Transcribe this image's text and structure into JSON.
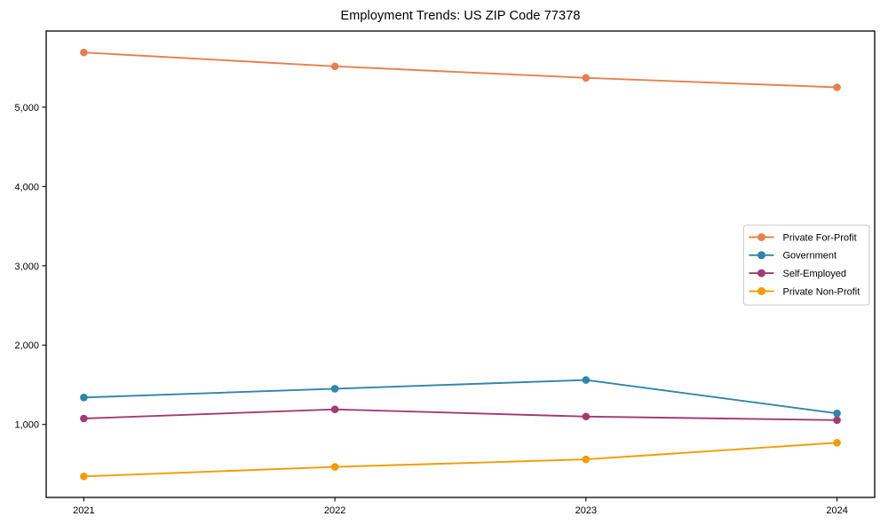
{
  "chart_data": {
    "type": "line",
    "title": "Employment Trends: US ZIP Code 77378",
    "xlabel": "",
    "ylabel": "",
    "x": [
      2021,
      2022,
      2023,
      2024
    ],
    "x_tick_labels": [
      "2021",
      "2022",
      "2023",
      "2024"
    ],
    "y_ticks": [
      1000,
      2000,
      3000,
      4000,
      5000
    ],
    "y_tick_labels": [
      "1,000",
      "2,000",
      "3,000",
      "4,000",
      "5,000"
    ],
    "xlim": [
      2020.85,
      2024.15
    ],
    "ylim": [
      80,
      5960
    ],
    "grid": false,
    "legend_position": "center-right",
    "marker": "circle",
    "series": [
      {
        "name": "Private For-Profit",
        "color": "#E8804E",
        "values": [
          5690,
          5515,
          5370,
          5250
        ]
      },
      {
        "name": "Government",
        "color": "#2E86A8",
        "values": [
          1340,
          1450,
          1560,
          1140
        ]
      },
      {
        "name": "Self-Employed",
        "color": "#A23B72",
        "values": [
          1075,
          1190,
          1100,
          1055
        ]
      },
      {
        "name": "Private Non-Profit",
        "color": "#F49B00",
        "values": [
          345,
          465,
          560,
          770
        ]
      }
    ],
    "colors": {
      "axis": "#000000",
      "text": "#000000",
      "legend_border": "#c9c9c9",
      "background": "#ffffff"
    }
  }
}
